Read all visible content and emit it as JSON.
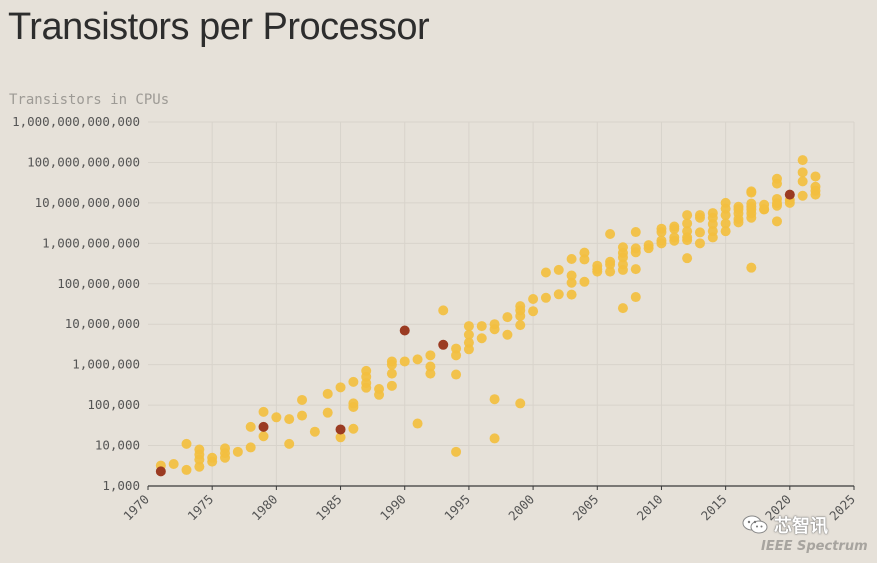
{
  "title": "Transistors per Processor",
  "subtitle": "Transistors in CPUs",
  "watermark": {
    "wechat": "芯智讯",
    "ieee": "IEEE Spectrum"
  },
  "colors": {
    "normal": "#f3bf3f",
    "highlight": "#9b3b22",
    "grid": "#d8d3cb",
    "axis": "#3a3a3a"
  },
  "chart_data": {
    "type": "scatter",
    "title": "Transistors per Processor",
    "ylabel": "Transistors in CPUs",
    "xlabel": "",
    "x_scale": "linear",
    "y_scale": "log",
    "xlim": [
      1970,
      2025
    ],
    "ylim": [
      1000,
      1000000000000
    ],
    "x_ticks": [
      "1970",
      "1975",
      "1980",
      "1985",
      "1990",
      "1995",
      "2000",
      "2005",
      "2010",
      "2015",
      "2020",
      "2025"
    ],
    "y_ticks": [
      "1,000",
      "10,000",
      "100,000",
      "1,000,000",
      "10,000,000",
      "100,000,000",
      "1,000,000,000",
      "10,000,000,000",
      "100,000,000,000",
      "1,000,000,000,000"
    ],
    "grid": true,
    "series": [
      {
        "points": [
          [
            1971,
            3200
          ],
          [
            1972,
            3500
          ],
          [
            1973,
            2500
          ],
          [
            1973,
            11000
          ],
          [
            1974,
            4500
          ],
          [
            1974,
            6000
          ],
          [
            1974,
            8000
          ],
          [
            1974,
            3000
          ],
          [
            1975,
            4000
          ],
          [
            1975,
            5000
          ],
          [
            1976,
            6500
          ],
          [
            1976,
            8500
          ],
          [
            1976,
            5000
          ],
          [
            1977,
            7000
          ],
          [
            1978,
            9000
          ],
          [
            1978,
            29000
          ],
          [
            1979,
            68000
          ],
          [
            1979,
            17000
          ],
          [
            1980,
            50000
          ],
          [
            1981,
            45000
          ],
          [
            1981,
            11000
          ],
          [
            1982,
            55000
          ],
          [
            1982,
            134000
          ],
          [
            1983,
            22000
          ],
          [
            1984,
            190000
          ],
          [
            1984,
            65000
          ],
          [
            1985,
            275000
          ],
          [
            1985,
            16000
          ],
          [
            1986,
            375000
          ],
          [
            1986,
            110000
          ],
          [
            1986,
            90000
          ],
          [
            1986,
            26000
          ],
          [
            1987,
            700000
          ],
          [
            1987,
            500000
          ],
          [
            1987,
            350000
          ],
          [
            1987,
            270000
          ],
          [
            1988,
            250000
          ],
          [
            1988,
            180000
          ],
          [
            1989,
            1200000
          ],
          [
            1989,
            1000000
          ],
          [
            1989,
            600000
          ],
          [
            1989,
            300000
          ],
          [
            1990,
            1200000
          ],
          [
            1991,
            1350000
          ],
          [
            1991,
            35000
          ],
          [
            1992,
            900000
          ],
          [
            1992,
            1700000
          ],
          [
            1992,
            600000
          ],
          [
            1993,
            22000000
          ],
          [
            1994,
            2500000
          ],
          [
            1994,
            1700000
          ],
          [
            1994,
            570000
          ],
          [
            1994,
            7000
          ],
          [
            1995,
            9000000
          ],
          [
            1995,
            5500000
          ],
          [
            1995,
            3500000
          ],
          [
            1995,
            2400000
          ],
          [
            1996,
            9000000
          ],
          [
            1996,
            4500000
          ],
          [
            1997,
            10000000
          ],
          [
            1997,
            7500000
          ],
          [
            1997,
            140000
          ],
          [
            1997,
            15000
          ],
          [
            1998,
            15000000
          ],
          [
            1998,
            5500000
          ],
          [
            1999,
            28000000
          ],
          [
            1999,
            22000000
          ],
          [
            1999,
            16000000
          ],
          [
            1999,
            9500000
          ],
          [
            1999,
            110000
          ],
          [
            2000,
            42000000
          ],
          [
            2000,
            21000000
          ],
          [
            2001,
            45000000
          ],
          [
            2001,
            190000000
          ],
          [
            2002,
            55000000
          ],
          [
            2002,
            220000000
          ],
          [
            2003,
            410000000
          ],
          [
            2003,
            160000000
          ],
          [
            2003,
            106000000
          ],
          [
            2003,
            54000000
          ],
          [
            2004,
            590000000
          ],
          [
            2004,
            400000000
          ],
          [
            2004,
            112000000
          ],
          [
            2005,
            280000000
          ],
          [
            2005,
            230000000
          ],
          [
            2005,
            200000000
          ],
          [
            2006,
            1700000000
          ],
          [
            2006,
            350000000
          ],
          [
            2006,
            300000000
          ],
          [
            2006,
            200000000
          ],
          [
            2007,
            800000000
          ],
          [
            2007,
            580000000
          ],
          [
            2007,
            450000000
          ],
          [
            2007,
            300000000
          ],
          [
            2007,
            220000000
          ],
          [
            2007,
            25000000
          ],
          [
            2008,
            1900000000
          ],
          [
            2008,
            750000000
          ],
          [
            2008,
            600000000
          ],
          [
            2008,
            230000000
          ],
          [
            2008,
            47000000
          ],
          [
            2009,
            900000000
          ],
          [
            2009,
            760000000
          ],
          [
            2010,
            2300000000
          ],
          [
            2010,
            1900000000
          ],
          [
            2010,
            1170000000
          ],
          [
            2010,
            1000000000
          ],
          [
            2011,
            2600000000
          ],
          [
            2011,
            2270000000
          ],
          [
            2011,
            1400000000
          ],
          [
            2011,
            1160000000
          ],
          [
            2012,
            5000000000
          ],
          [
            2012,
            3100000000
          ],
          [
            2012,
            2000000000
          ],
          [
            2012,
            1400000000
          ],
          [
            2012,
            1200000000
          ],
          [
            2012,
            430000000
          ],
          [
            2013,
            5000000000
          ],
          [
            2013,
            4300000000
          ],
          [
            2013,
            1860000000
          ],
          [
            2013,
            1000000000
          ],
          [
            2014,
            5600000000
          ],
          [
            2014,
            4300000000
          ],
          [
            2014,
            3000000000
          ],
          [
            2014,
            2000000000
          ],
          [
            2014,
            1400000000
          ],
          [
            2015,
            10000000000
          ],
          [
            2015,
            7200000000
          ],
          [
            2015,
            5000000000
          ],
          [
            2015,
            3100000000
          ],
          [
            2015,
            2000000000
          ],
          [
            2016,
            8000000000
          ],
          [
            2016,
            7000000000
          ],
          [
            2016,
            5500000000
          ],
          [
            2016,
            4000000000
          ],
          [
            2016,
            3300000000
          ],
          [
            2017,
            19200000000
          ],
          [
            2017,
            18000000000
          ],
          [
            2017,
            9600000000
          ],
          [
            2017,
            8000000000
          ],
          [
            2017,
            6900000000
          ],
          [
            2017,
            5500000000
          ],
          [
            2017,
            4300000000
          ],
          [
            2017,
            250000000
          ],
          [
            2018,
            9000000000
          ],
          [
            2018,
            7000000000
          ],
          [
            2018,
            6900000000
          ],
          [
            2019,
            39500000000
          ],
          [
            2019,
            30000000000
          ],
          [
            2019,
            12500000000
          ],
          [
            2019,
            9800000000
          ],
          [
            2019,
            8500000000
          ],
          [
            2019,
            3500000000
          ],
          [
            2020,
            11800000000
          ],
          [
            2020,
            10000000000
          ],
          [
            2021,
            114000000000
          ],
          [
            2021,
            57000000000
          ],
          [
            2021,
            34000000000
          ],
          [
            2021,
            15000000000
          ],
          [
            2022,
            45000000000
          ],
          [
            2022,
            25000000000
          ],
          [
            2022,
            20000000000
          ],
          [
            2022,
            16000000000
          ]
        ]
      },
      {
        "highlight": true,
        "points": [
          [
            1971,
            2300
          ],
          [
            1979,
            29000
          ],
          [
            1985,
            25000
          ],
          [
            1990,
            7000000
          ],
          [
            1993,
            3100000
          ],
          [
            2020,
            16000000000
          ]
        ]
      }
    ]
  }
}
